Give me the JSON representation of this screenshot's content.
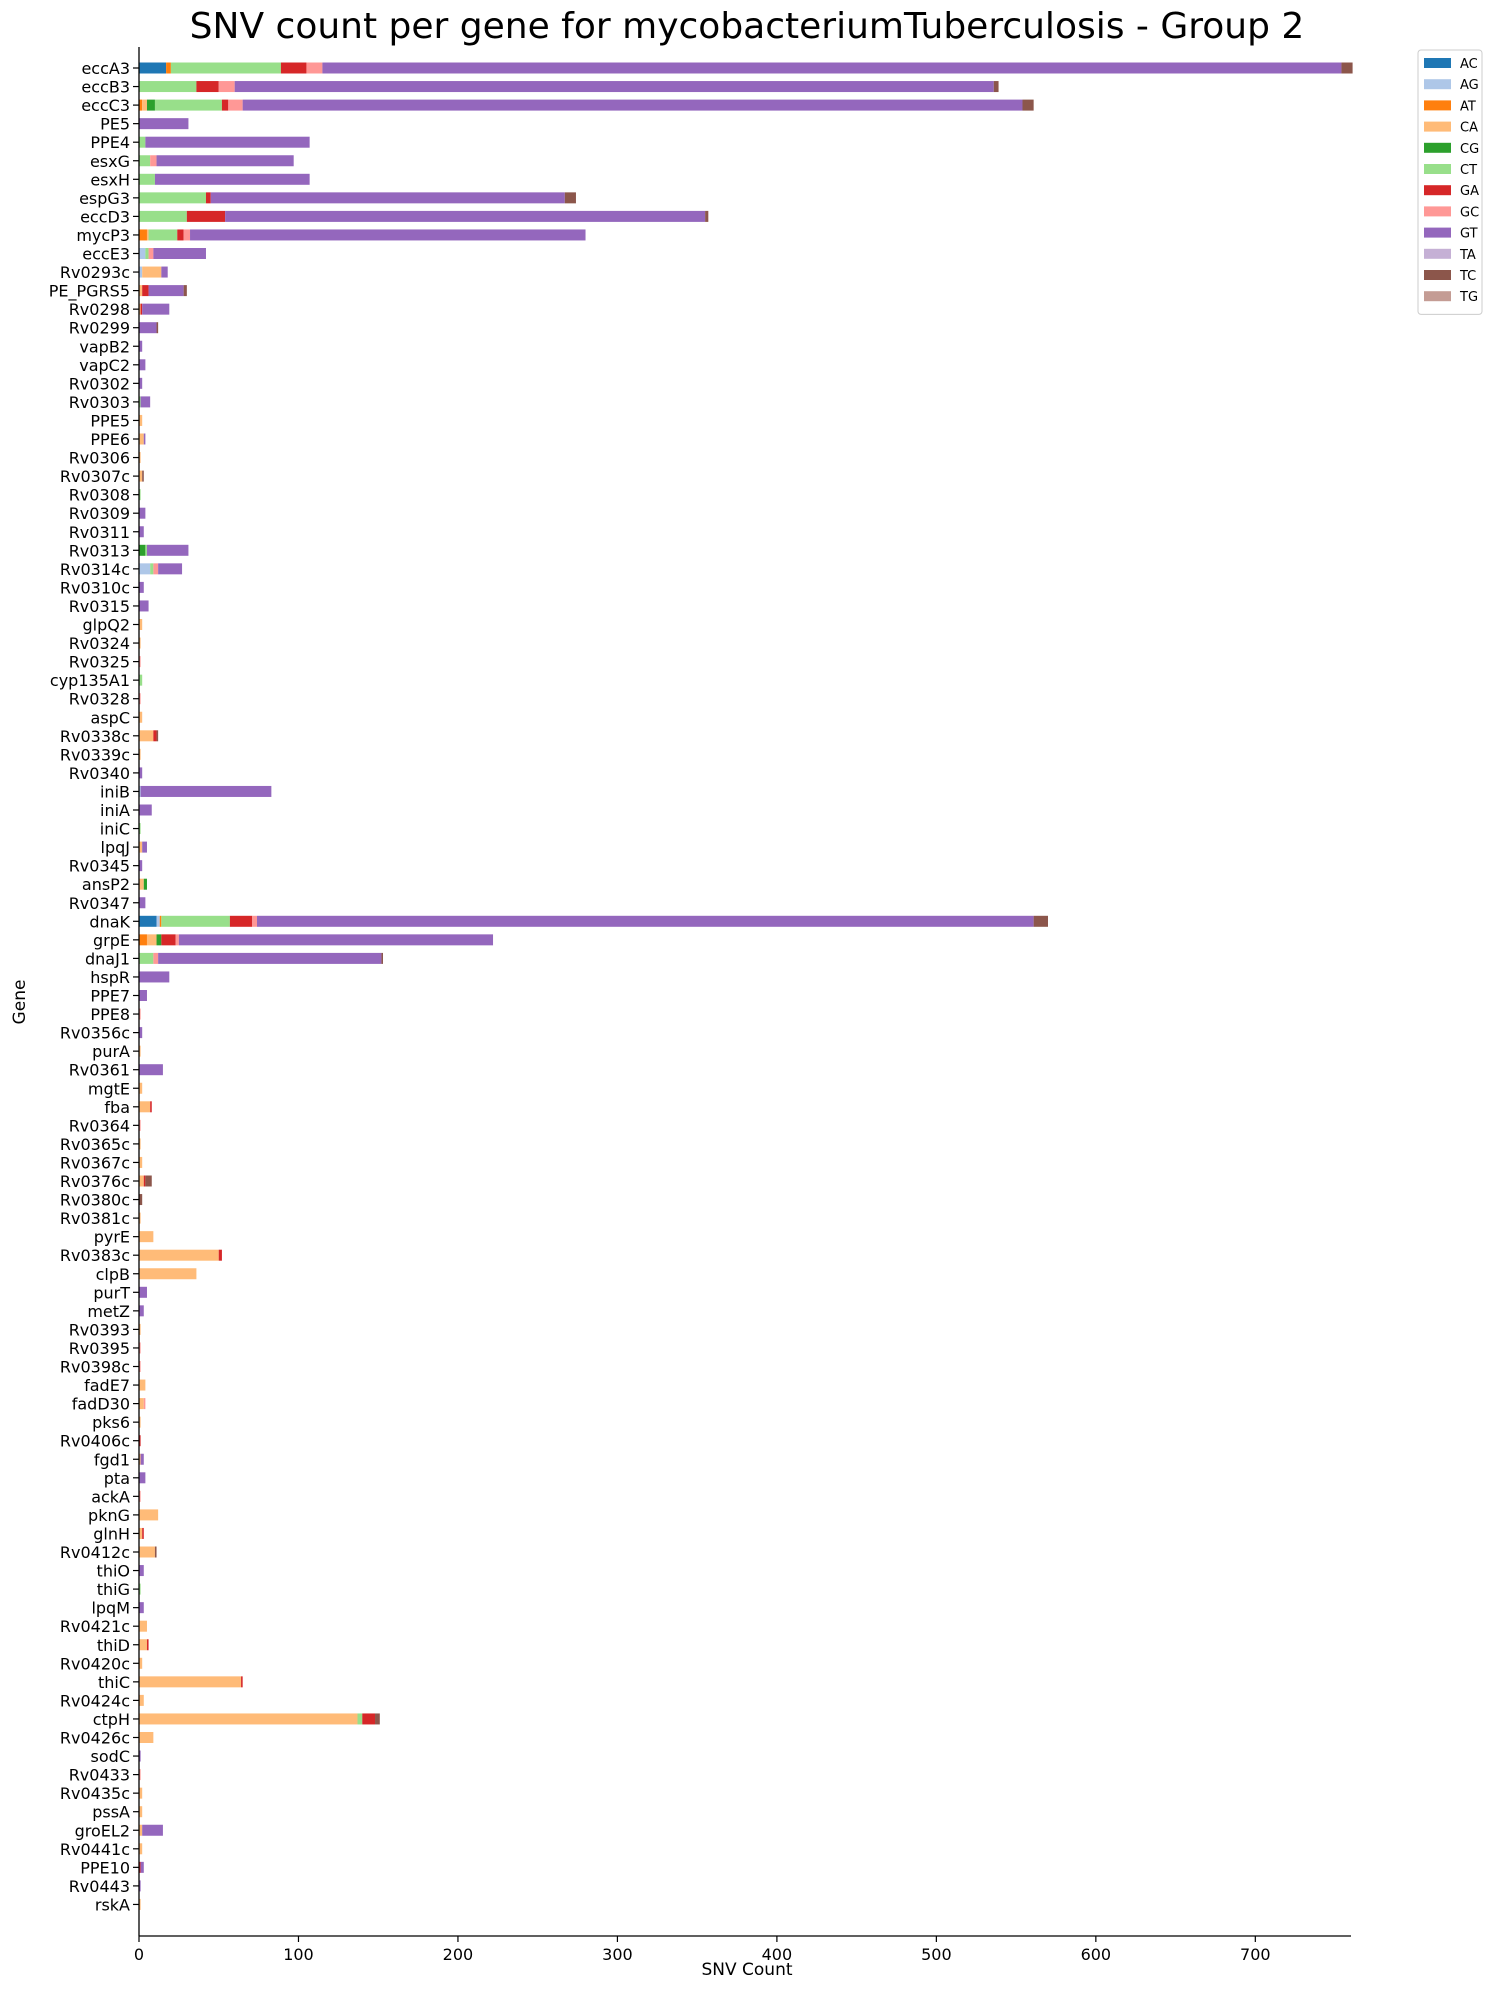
{
  "chart_data": {
    "type": "bar",
    "orientation": "horizontal",
    "stacked": true,
    "title": "SNV count per gene for mycobacteriumTuberculosis - Group 2",
    "xlabel": "SNV Count",
    "ylabel": "Gene",
    "xlim": [
      0,
      760
    ],
    "xticks": [
      0,
      100,
      200,
      300,
      400,
      500,
      600,
      700
    ],
    "legend_position": "top-right-outside",
    "series": [
      {
        "name": "AC",
        "color": "#1f77b4"
      },
      {
        "name": "AG",
        "color": "#aec7e8"
      },
      {
        "name": "AT",
        "color": "#ff7f0e"
      },
      {
        "name": "CA",
        "color": "#ffbb78"
      },
      {
        "name": "CG",
        "color": "#2ca02c"
      },
      {
        "name": "CT",
        "color": "#98df8a"
      },
      {
        "name": "GA",
        "color": "#d62728"
      },
      {
        "name": "GC",
        "color": "#ff9896"
      },
      {
        "name": "GT",
        "color": "#9467bd"
      },
      {
        "name": "TA",
        "color": "#c5b0d5"
      },
      {
        "name": "TC",
        "color": "#8c564b"
      },
      {
        "name": "TG",
        "color": "#c49c94"
      }
    ],
    "categories": [
      "eccA3",
      "eccB3",
      "eccC3",
      "PE5",
      "PPE4",
      "esxG",
      "esxH",
      "espG3",
      "eccD3",
      "mycP3",
      "eccE3",
      "Rv0293c",
      "PE_PGRS5",
      "Rv0298",
      "Rv0299",
      "vapB2",
      "vapC2",
      "Rv0302",
      "Rv0303",
      "PPE5",
      "PPE6",
      "Rv0306",
      "Rv0307c",
      "Rv0308",
      "Rv0309",
      "Rv0311",
      "Rv0313",
      "Rv0314c",
      "Rv0310c",
      "Rv0315",
      "glpQ2",
      "Rv0324",
      "Rv0325",
      "cyp135A1",
      "Rv0328",
      "aspC",
      "Rv0338c",
      "Rv0339c",
      "Rv0340",
      "iniB",
      "iniA",
      "iniC",
      "lpqJ",
      "Rv0345",
      "ansP2",
      "Rv0347",
      "dnaK",
      "grpE",
      "dnaJ1",
      "hspR",
      "PPE7",
      "PPE8",
      "Rv0356c",
      "purA",
      "Rv0361",
      "mgtE",
      "fba",
      "Rv0364",
      "Rv0365c",
      "Rv0367c",
      "Rv0376c",
      "Rv0380c",
      "Rv0381c",
      "pyrE",
      "Rv0383c",
      "clpB",
      "purT",
      "metZ",
      "Rv0393",
      "Rv0395",
      "Rv0398c",
      "fadE7",
      "fadD30",
      "pks6",
      "Rv0406c",
      "fgd1",
      "pta",
      "ackA",
      "pknG",
      "glnH",
      "Rv0412c",
      "thiO",
      "thiG",
      "lpqM",
      "Rv0421c",
      "thiD",
      "Rv0420c",
      "thiC",
      "Rv0424c",
      "ctpH",
      "Rv0426c",
      "sodC",
      "Rv0433",
      "Rv0435c",
      "pssA",
      "groEL2",
      "Rv0441c",
      "PPE10",
      "Rv0443",
      "rskA"
    ],
    "values": [
      {
        "AC": 17,
        "AT": 3,
        "CT": 69,
        "GA": 16,
        "GC": 10,
        "GT": 639,
        "TC": 7
      },
      {
        "CT": 36,
        "GA": 14,
        "GC": 10,
        "GT": 476,
        "TC": 3
      },
      {
        "AT": 2,
        "CA": 3,
        "CG": 5,
        "CT": 42,
        "GA": 4,
        "GC": 9,
        "GT": 489,
        "TC": 7
      },
      {
        "GT": 31
      },
      {
        "CT": 4,
        "GT": 103
      },
      {
        "CT": 7,
        "GC": 4,
        "GT": 86
      },
      {
        "CT": 10,
        "GT": 97
      },
      {
        "CT": 42,
        "GA": 3,
        "GT": 222,
        "TC": 7
      },
      {
        "CT": 30,
        "GA": 24,
        "GT": 301,
        "TC": 2
      },
      {
        "AT": 5,
        "CA": 1,
        "CT": 18,
        "GA": 4,
        "GC": 4,
        "GT": 248
      },
      {
        "AG": 4,
        "CT": 2,
        "GC": 3,
        "GT": 33
      },
      {
        "AG": 2,
        "CA": 12,
        "GT": 4
      },
      {
        "CA": 2,
        "GA": 4,
        "GT": 22,
        "TC": 2
      },
      {
        "CA": 1,
        "GA": 1,
        "GT": 17
      },
      {
        "GT": 11,
        "TC": 1
      },
      {
        "GT": 2
      },
      {
        "GT": 4
      },
      {
        "GT": 2
      },
      {
        "CT": 1,
        "GT": 6
      },
      {
        "CA": 2
      },
      {
        "CA": 3,
        "GT": 1
      },
      {
        "CA": 1
      },
      {
        "CA": 2,
        "TC": 1
      },
      {
        "CT": 1
      },
      {
        "GT": 4
      },
      {
        "GT": 3
      },
      {
        "CG": 4,
        "CT": 1,
        "GT": 26
      },
      {
        "AG": 7,
        "CT": 2,
        "GC": 3,
        "GT": 15
      },
      {
        "GT": 3
      },
      {
        "GT": 6
      },
      {
        "CA": 2
      },
      {
        "CA": 1
      },
      {
        "GC": 1
      },
      {
        "CT": 2
      },
      {
        "GC": 1
      },
      {
        "CA": 2
      },
      {
        "CA": 9,
        "GA": 2,
        "TC": 1
      },
      {
        "CA": 1
      },
      {
        "GT": 2
      },
      {
        "AG": 1,
        "GT": 82
      },
      {
        "GT": 8
      },
      {
        "CT": 1
      },
      {
        "CA": 2,
        "GT": 3
      },
      {
        "GT": 2
      },
      {
        "CA": 3,
        "CG": 2
      },
      {
        "GT": 4
      },
      {
        "AC": 11,
        "AG": 2,
        "AT": 1,
        "CT": 43,
        "GA": 14,
        "GC": 3,
        "GT": 487,
        "TC": 9
      },
      {
        "AT": 5,
        "CA": 6,
        "CG": 3,
        "GA": 9,
        "GC": 2,
        "GT": 197
      },
      {
        "CT": 9,
        "GC": 3,
        "GT": 140,
        "TC": 1
      },
      {
        "GT": 19
      },
      {
        "GT": 5
      },
      {
        "GC": 1
      },
      {
        "GT": 2
      },
      {
        "CA": 1
      },
      {
        "GT": 15
      },
      {
        "CA": 2
      },
      {
        "CA": 7,
        "GA": 1
      },
      {
        "GC": 1
      },
      {
        "CA": 1
      },
      {
        "CA": 2
      },
      {
        "CA": 3,
        "GA": 1,
        "TC": 4
      },
      {
        "TC": 2
      },
      {
        "CA": 1
      },
      {
        "CA": 9
      },
      {
        "CA": 50,
        "GA": 2
      },
      {
        "CA": 36
      },
      {
        "GT": 5
      },
      {
        "GT": 3
      },
      {
        "CA": 1
      },
      {
        "GC": 1
      },
      {
        "GC": 1
      },
      {
        "CA": 4
      },
      {
        "CA": 3,
        "GC": 1
      },
      {
        "CA": 1
      },
      {
        "GA": 1
      },
      {
        "CA": 1,
        "GT": 2
      },
      {
        "GT": 4
      },
      {
        "GC": 1
      },
      {
        "CA": 12
      },
      {
        "CA": 2,
        "GA": 1
      },
      {
        "CA": 10,
        "TC": 1
      },
      {
        "GT": 3
      },
      {
        "CT": 1
      },
      {
        "GT": 3
      },
      {
        "CA": 5
      },
      {
        "CA": 5,
        "GA": 1
      },
      {
        "CA": 2
      },
      {
        "CA": 64,
        "GA": 1
      },
      {
        "CA": 3
      },
      {
        "CA": 137,
        "CT": 3,
        "GA": 8,
        "TC": 3
      },
      {
        "CA": 9
      },
      {
        "GT": 1
      },
      {
        "GC": 1
      },
      {
        "CA": 2
      },
      {
        "CA": 2
      },
      {
        "CA": 2,
        "GT": 13
      },
      {
        "CA": 2
      },
      {
        "GA": 1,
        "GT": 2
      },
      {
        "GT": 1
      },
      {
        "CA": 1
      }
    ]
  }
}
